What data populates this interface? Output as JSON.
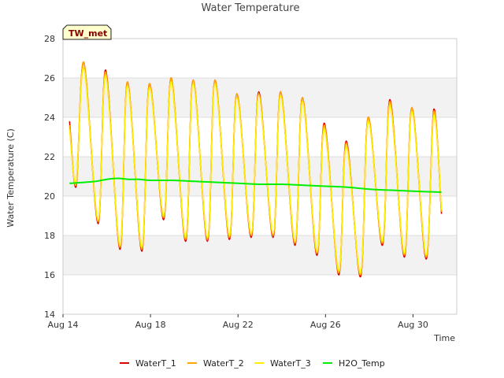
{
  "chart_data": {
    "type": "line",
    "title": "Water Temperature",
    "xlabel": "Time",
    "ylabel": "Water Temperature (C)",
    "station_label": "TW_met",
    "ylim": [
      14,
      28
    ],
    "yticks": [
      14,
      16,
      18,
      20,
      22,
      24,
      26,
      28
    ],
    "xlim": [
      0,
      18
    ],
    "xticks": [
      {
        "x": 0,
        "label": "Aug 14"
      },
      {
        "x": 4,
        "label": "Aug 18"
      },
      {
        "x": 8,
        "label": "Aug 22"
      },
      {
        "x": 12,
        "label": "Aug 26"
      },
      {
        "x": 16,
        "label": "Aug 30"
      }
    ],
    "grid": true,
    "legend_position": "bottom",
    "colors": {
      "band": "#f2f2f2",
      "axes": "#cccccc",
      "WaterT_1": "#dd0000",
      "WaterT_2": "#ffa500",
      "WaterT_3": "#ffee00",
      "H2O_Temp": "#00ee00"
    },
    "series": [
      {
        "name": "WaterT_1",
        "x": [
          0.3,
          0.6,
          0.95,
          1.6,
          1.95,
          2.6,
          2.95,
          3.6,
          3.95,
          4.6,
          4.95,
          5.6,
          5.95,
          6.6,
          6.95,
          7.6,
          7.95,
          8.6,
          8.95,
          9.6,
          9.95,
          10.6,
          10.95,
          11.6,
          11.95,
          12.6,
          12.95,
          13.6,
          13.95,
          14.6,
          14.95,
          15.6,
          15.95,
          16.6,
          16.95,
          17.3
        ],
        "values": [
          23.8,
          20.5,
          26.8,
          18.6,
          26.4,
          17.3,
          25.8,
          17.2,
          25.7,
          18.8,
          26.0,
          17.7,
          25.9,
          17.7,
          25.9,
          17.8,
          25.2,
          17.9,
          25.3,
          17.9,
          25.3,
          17.5,
          25.0,
          17.0,
          23.7,
          16.0,
          22.8,
          15.9,
          24.0,
          17.5,
          24.9,
          16.9,
          24.5,
          16.8,
          24.4,
          19.1
        ]
      },
      {
        "name": "WaterT_2",
        "x": [
          0.3,
          0.6,
          0.95,
          1.6,
          1.95,
          2.6,
          2.95,
          3.6,
          3.95,
          4.6,
          4.95,
          5.6,
          5.95,
          6.6,
          6.95,
          7.6,
          7.95,
          8.6,
          8.95,
          9.6,
          9.95,
          10.6,
          10.95,
          11.6,
          11.95,
          12.6,
          12.95,
          13.6,
          13.95,
          14.6,
          14.95,
          15.6,
          15.95,
          16.6,
          16.95,
          17.3
        ],
        "values": [
          23.6,
          20.6,
          26.8,
          18.7,
          26.3,
          17.4,
          25.8,
          17.3,
          25.7,
          18.9,
          26.0,
          17.8,
          25.9,
          17.8,
          25.9,
          17.9,
          25.2,
          18.0,
          25.2,
          18.0,
          25.3,
          17.6,
          25.0,
          17.1,
          23.6,
          16.1,
          22.7,
          16.0,
          24.0,
          17.6,
          24.8,
          17.0,
          24.5,
          16.9,
          24.3,
          19.2
        ]
      },
      {
        "name": "WaterT_3",
        "x": [
          0.3,
          0.6,
          0.95,
          1.6,
          1.95,
          2.6,
          2.95,
          3.6,
          3.95,
          4.6,
          4.95,
          5.6,
          5.95,
          6.6,
          6.95,
          7.6,
          7.95,
          8.6,
          8.95,
          9.6,
          9.95,
          10.6,
          10.95,
          11.6,
          11.95,
          12.6,
          12.95,
          13.6,
          13.95,
          14.6,
          14.95,
          15.6,
          15.95,
          16.6,
          16.95,
          17.3
        ],
        "values": [
          23.4,
          20.7,
          26.5,
          18.8,
          26.1,
          17.5,
          25.6,
          17.4,
          25.5,
          19.0,
          25.8,
          17.9,
          25.7,
          17.9,
          25.7,
          18.0,
          25.0,
          18.1,
          25.1,
          18.1,
          25.1,
          17.7,
          24.8,
          17.2,
          23.4,
          16.2,
          22.5,
          16.1,
          23.8,
          17.7,
          24.6,
          17.1,
          24.3,
          17.0,
          24.1,
          19.3
        ]
      },
      {
        "name": "H2O_Temp",
        "x": [
          0.3,
          1.0,
          1.5,
          2.0,
          2.5,
          3.0,
          3.5,
          4.0,
          5.0,
          6.0,
          7.0,
          8.0,
          9.0,
          10.0,
          11.0,
          12.0,
          13.0,
          14.0,
          15.0,
          16.0,
          17.3
        ],
        "values": [
          20.65,
          20.7,
          20.75,
          20.85,
          20.9,
          20.85,
          20.85,
          20.8,
          20.8,
          20.75,
          20.7,
          20.65,
          20.6,
          20.6,
          20.55,
          20.5,
          20.45,
          20.35,
          20.3,
          20.25,
          20.2
        ]
      }
    ]
  }
}
